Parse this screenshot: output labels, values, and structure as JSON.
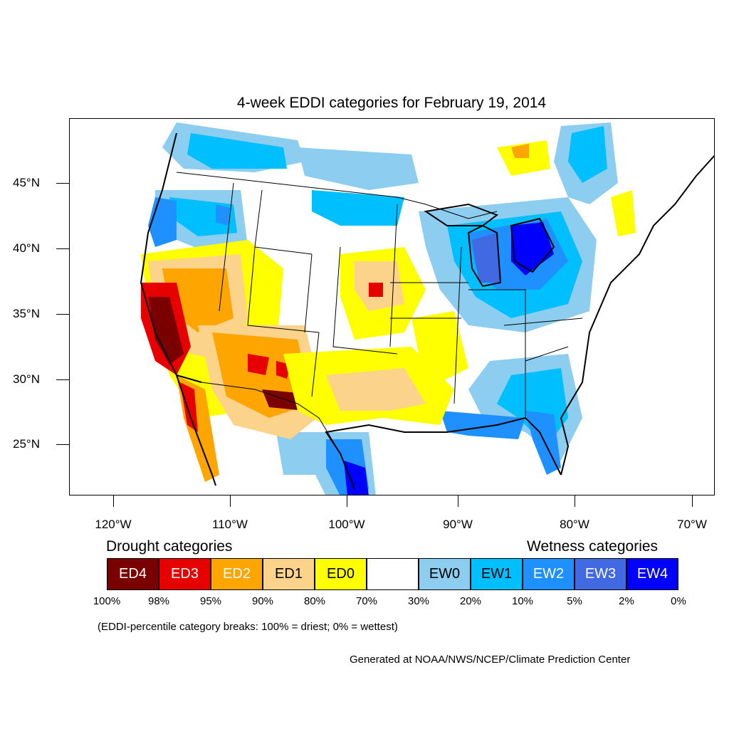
{
  "title": "4-week EDDI categories for February 19, 2014",
  "lat_labels": [
    "45°N",
    "40°N",
    "35°N",
    "30°N",
    "25°N"
  ],
  "lon_labels": [
    "120°W",
    "110°W",
    "100°W",
    "90°W",
    "80°W",
    "70°W"
  ],
  "legend": {
    "drought_heading": "Drought categories",
    "wetness_heading": "Wetness categories",
    "categories": [
      {
        "label": "ED4",
        "color": "#7a0000",
        "text_color": "#ffffff"
      },
      {
        "label": "ED3",
        "color": "#e60000",
        "text_color": "#ffffff"
      },
      {
        "label": "ED2",
        "color": "#ffa500",
        "text_color": "#ffffff"
      },
      {
        "label": "ED1",
        "color": "#fcd38b",
        "text_color": "#000000"
      },
      {
        "label": "ED0",
        "color": "#ffff00",
        "text_color": "#000000"
      },
      {
        "label": "",
        "color": "#ffffff",
        "text_color": "#000000"
      },
      {
        "label": "EW0",
        "color": "#8ccdf0",
        "text_color": "#000000"
      },
      {
        "label": "EW1",
        "color": "#00bfff",
        "text_color": "#000000"
      },
      {
        "label": "EW2",
        "color": "#1e90ff",
        "text_color": "#ffffff"
      },
      {
        "label": "EW3",
        "color": "#4169e1",
        "text_color": "#ffffff"
      },
      {
        "label": "EW4",
        "color": "#0000ff",
        "text_color": "#ffffff"
      }
    ],
    "percent_breaks": [
      "100%",
      "98%",
      "95%",
      "90%",
      "80%",
      "70%",
      "30%",
      "20%",
      "10%",
      "5%",
      "2%",
      "0%"
    ]
  },
  "note": "(EDDI-percentile category breaks: 100% = driest; 0% = wettest)",
  "credit": "Generated at NOAA/NWS/NCEP/Climate Prediction Center"
}
